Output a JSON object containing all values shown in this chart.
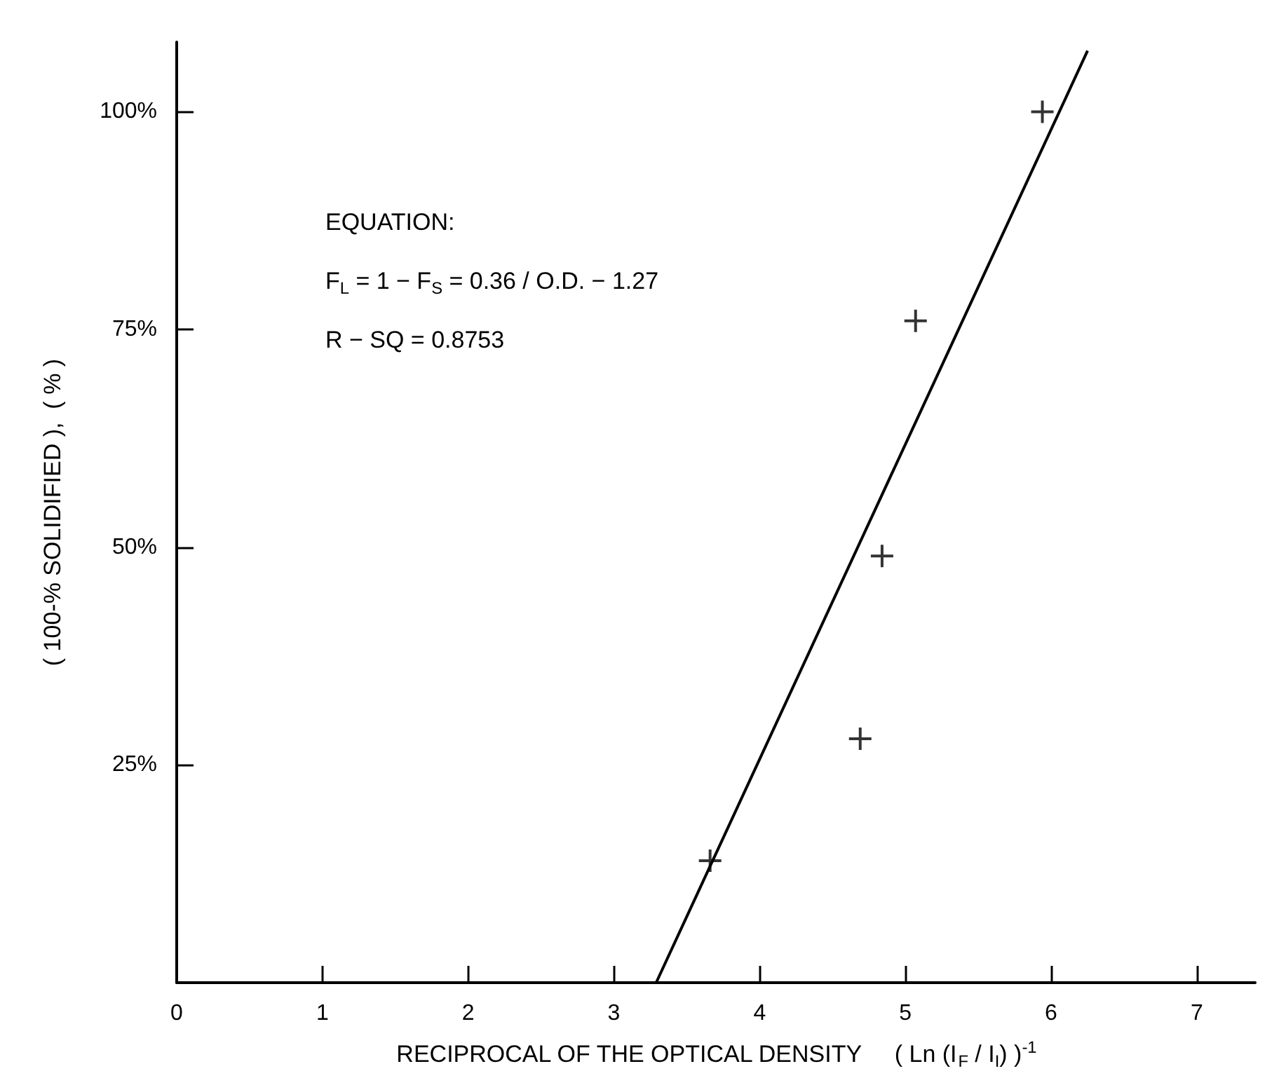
{
  "chart_data": {
    "type": "scatter",
    "xlabel": "RECIPROCAL OF THE OPTICAL DENSITY     ( Ln (I$_{F}$ / I$_{I}$) )$^{-1}$",
    "ylabel": "( 100-% SOLIDIFIED ),  ( % )",
    "series": [
      {
        "color": "#000000",
        "marker": "cross",
        "x": [
          3.66,
          4.69,
          4.84,
          5.07,
          5.94
        ],
        "values": [
          14,
          28,
          49,
          76,
          100
        ]
      },
      {
        "type": "line",
        "color": "#000000",
        "marker": "none",
        "line_style": "solid",
        "x": [
          3.29,
          6.25
        ],
        "values": [
          0,
          107
        ]
      }
    ],
    "annotations": [
      "EQUATION:",
      "F$_{L}$ = 1 − F$_{S}$ = 0.36 / O.D. − 1.27",
      "R − SQ = 0.8753"
    ],
    "xlim": [
      0,
      7.4
    ],
    "xticks": [
      0,
      1,
      2,
      3,
      4,
      5,
      6,
      7
    ],
    "ylim": [
      0,
      108
    ],
    "yticks": [
      {
        "value": 0,
        "label": null
      },
      {
        "value": 25,
        "label": "25%"
      },
      {
        "value": 50,
        "label": "50%"
      },
      {
        "value": 75,
        "label": "75%"
      },
      {
        "value": 100,
        "label": "100%"
      }
    ],
    "grid": false
  }
}
